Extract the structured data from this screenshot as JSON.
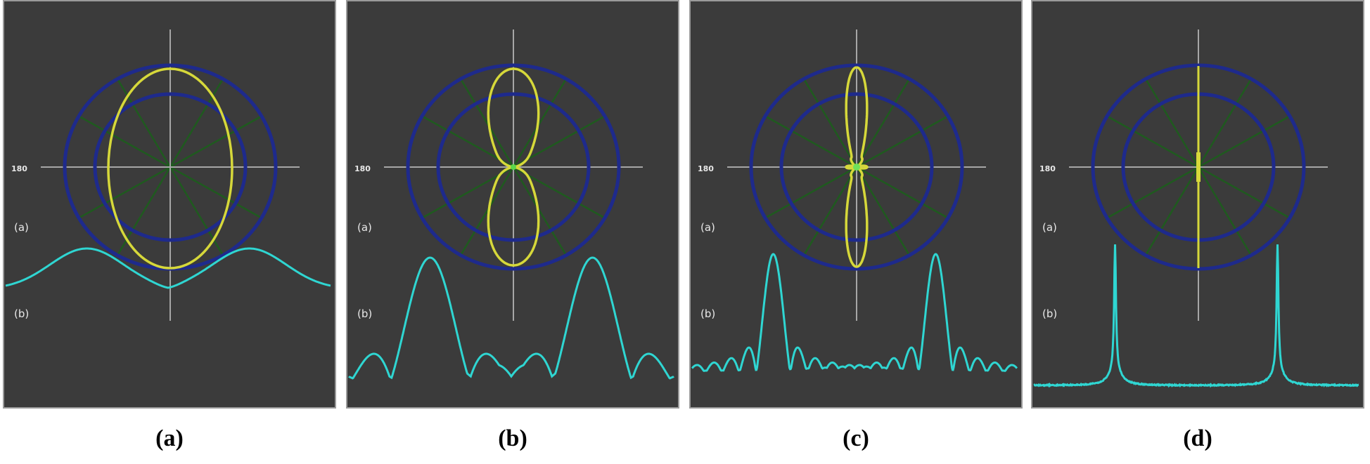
{
  "colors": {
    "panel_bg": "#3b3b3b",
    "crosshair": "#a6a6a6",
    "spoke": "#1f5a1f",
    "ring": "#1e2a8c",
    "lobe": "#d6d83a",
    "spectrum": "#2fd6d2"
  },
  "panels": [
    {
      "caption": "(a)",
      "angle_label": "180",
      "label_a": "(a)",
      "label_b": "(b)",
      "pattern": "wide-oval",
      "spectrum": "broad"
    },
    {
      "caption": "(b)",
      "angle_label": "180",
      "label_a": "(a)",
      "label_b": "(b)",
      "pattern": "two-lobe",
      "spectrum": "sinc"
    },
    {
      "caption": "(c)",
      "angle_label": "180",
      "label_a": "(a)",
      "label_b": "(b)",
      "pattern": "narrow-lobe",
      "spectrum": "sinc-narrow"
    },
    {
      "caption": "(d)",
      "angle_label": "180",
      "label_a": "(a)",
      "label_b": "(b)",
      "pattern": "needle",
      "spectrum": "spikes"
    }
  ]
}
